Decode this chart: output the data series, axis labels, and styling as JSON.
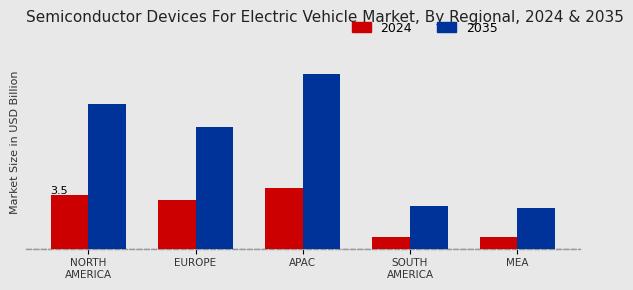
{
  "title": "Semiconductor Devices For Electric Vehicle Market, By Regional, 2024 & 2035",
  "ylabel": "Market Size in USD Billion",
  "categories": [
    "NORTH\nAMERICA",
    "EUROPE",
    "APAC",
    "SOUTH\nAMERICA",
    "MEA"
  ],
  "values_2024": [
    3.5,
    3.2,
    4.0,
    0.8,
    0.75
  ],
  "values_2035": [
    9.5,
    8.0,
    11.5,
    2.8,
    2.7
  ],
  "color_2024": "#cc0000",
  "color_2035": "#003399",
  "bar_width": 0.35,
  "annotation_text": "3.5",
  "annotation_bar_index": 0,
  "background_color": "#e8e8e8",
  "title_fontsize": 11,
  "legend_labels": [
    "2024",
    "2035"
  ],
  "ylim": [
    0,
    14
  ]
}
